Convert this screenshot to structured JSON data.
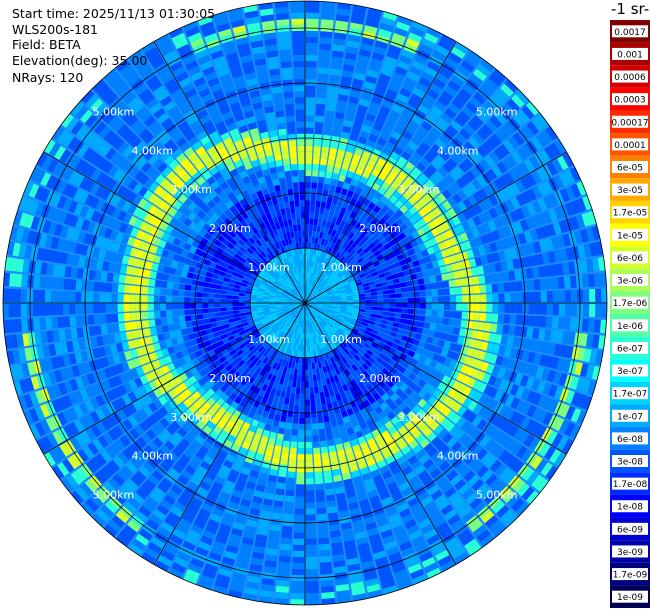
{
  "header": {
    "start_time": "Start time: 2025/11/13 01:30:05",
    "device": "WLS200s-181",
    "field": "Field: BETA",
    "elevation": "Elevation(deg): 35.00",
    "nrays": "NRays: 120"
  },
  "colorbar": {
    "title": "-1 sr-",
    "labels": [
      "0.0017",
      "0.001",
      "0.0006",
      "0.0003",
      "0.00017",
      "0.0001",
      "6e-05",
      "3e-05",
      "1.7e-05",
      "1e-05",
      "6e-06",
      "3e-06",
      "1.7e-06",
      "1e-06",
      "6e-07",
      "3e-07",
      "1.7e-07",
      "1e-07",
      "6e-08",
      "3e-08",
      "1.7e-08",
      "1e-08",
      "6e-09",
      "3e-09",
      "1.7e-09",
      "1e-09"
    ],
    "colors": [
      "#7f0000",
      "#aa0000",
      "#d40000",
      "#ff0000",
      "#ff2a00",
      "#ff5500",
      "#ff7f00",
      "#ffaa00",
      "#ffd400",
      "#ffff00",
      "#d4ff2a",
      "#aaff55",
      "#7fff7f",
      "#55ffaa",
      "#2affd4",
      "#00ffff",
      "#00d4ff",
      "#00aaff",
      "#007fff",
      "#0055ff",
      "#002aff",
      "#0000ff",
      "#0000d4",
      "#0000aa",
      "#00007f",
      "#000055"
    ]
  },
  "chart_data": {
    "type": "heatmap",
    "projection": "polar",
    "field": "BETA",
    "elevation_deg": 35.0,
    "n_rays": 120,
    "range_rings_km": [
      1,
      2,
      3,
      4,
      5
    ],
    "ring_labels": [
      "1.00km",
      "2.00km",
      "3.00km",
      "4.00km",
      "5.00km"
    ],
    "max_range_km": 5.6,
    "radial_lines_deg": [
      0,
      30,
      60,
      90,
      120,
      150,
      180,
      210,
      240,
      270,
      300,
      330
    ],
    "features": [
      {
        "description": "enhanced aerosol ring",
        "range_km": [
          2.7,
          3.2
        ],
        "value_range": [
          1e-06,
          2e-05
        ]
      },
      {
        "description": "near-field low backscatter",
        "range_km": [
          0.0,
          1.0
        ],
        "value_range": [
          3e-08,
          2e-07
        ]
      },
      {
        "description": "outer enhanced band",
        "range_km": [
          4.8,
          5.3
        ],
        "value_range": [
          3e-07,
          3e-06
        ]
      }
    ]
  }
}
